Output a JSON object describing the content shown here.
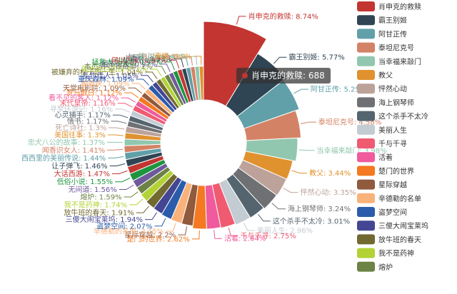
{
  "chart_data": {
    "type": "pie",
    "title": "",
    "legend_position": "right",
    "legend_items": [
      {
        "name": "肖申克的救赎",
        "color": "#c23531"
      },
      {
        "name": "霸王别姬",
        "color": "#2f4554"
      },
      {
        "name": "阿甘正传",
        "color": "#61a0a8"
      },
      {
        "name": "泰坦尼克号",
        "color": "#d48265"
      },
      {
        "name": "当幸福来敲门",
        "color": "#91c7ae"
      },
      {
        "name": "教父",
        "color": "#e0922f"
      },
      {
        "name": "怦然心动",
        "color": "#bda29a"
      },
      {
        "name": "海上钢琴师",
        "color": "#6e7074"
      },
      {
        "name": "这个杀手不太冷",
        "color": "#546570"
      },
      {
        "name": "美丽人生",
        "color": "#c4ccd3"
      },
      {
        "name": "千与千寻",
        "color": "#f05b72"
      },
      {
        "name": "活着",
        "color": "#ef5b9c"
      },
      {
        "name": "楚门的世界",
        "color": "#f47920"
      },
      {
        "name": "星际穿越",
        "color": "#905a3d"
      },
      {
        "name": "辛德勒的名单",
        "color": "#fab27b"
      },
      {
        "name": "盗梦空间",
        "color": "#2a5caa"
      },
      {
        "name": "三傻大闹宝莱坞",
        "color": "#444693"
      },
      {
        "name": "放牛班的春天",
        "color": "#726930"
      },
      {
        "name": "我不是药神",
        "color": "#b2d235"
      },
      {
        "name": "熔炉",
        "color": "#6d8346"
      }
    ],
    "slices": [
      {
        "name": "肖申克的救赎",
        "pct": 8.74,
        "color": "#c23531",
        "label": "肖申克的救赎: 8.74%"
      },
      {
        "name": "霸王别姬",
        "pct": 5.77,
        "color": "#2f4554",
        "label": "霸王别姬: 5.77%"
      },
      {
        "name": "阿甘正传",
        "pct": 5.25,
        "color": "#61a0a8",
        "label": "阿甘正传: 5.25%"
      },
      {
        "name": "泰坦尼克号",
        "pct": 4.58,
        "color": "#d48265",
        "label": "泰坦尼克号: 4.58%"
      },
      {
        "name": "当幸福来敲门",
        "pct": 3.98,
        "color": "#91c7ae",
        "label": "当幸福来敲门: 3.98%"
      },
      {
        "name": "教父",
        "pct": 3.44,
        "color": "#e0922f",
        "label": "教父: 3.44%"
      },
      {
        "name": "怦然心动",
        "pct": 3.35,
        "color": "#bda29a",
        "label": "怦然心动: 3.35%"
      },
      {
        "name": "海上钢琴师",
        "pct": 3.24,
        "color": "#6e7074",
        "label": "海上钢琴师: 3.24%"
      },
      {
        "name": "这个杀手不太冷",
        "pct": 3.01,
        "color": "#546570",
        "label": "这个杀手不太冷: 3.01%"
      },
      {
        "name": "美丽人生",
        "pct": 2.96,
        "color": "#c4ccd3",
        "label": "美丽人生: 2.96%"
      },
      {
        "name": "千与千寻",
        "pct": 2.75,
        "color": "#f05b72",
        "label": "千与千寻: 2.75%"
      },
      {
        "name": "活着",
        "pct": 2.64,
        "color": "#ef5b9c",
        "label": "活着: 2.64%"
      },
      {
        "name": "楚门的世界",
        "pct": 2.62,
        "color": "#f47920",
        "label": "楚门的世界: 2.62%"
      },
      {
        "name": "星际穿越",
        "pct": 2.2,
        "color": "#905a3d",
        "label": "星际穿越: 2.2%"
      },
      {
        "name": "辛德勒的名单",
        "pct": 2.15,
        "color": "#fab27b",
        "label": "辛德勒的名单: 2.15%"
      },
      {
        "name": "盗梦空间",
        "pct": 2.07,
        "color": "#2a5caa",
        "label": "盗梦空间: 2.07%"
      },
      {
        "name": "三傻大闹宝莱坞",
        "pct": 1.94,
        "color": "#444693",
        "label": "三傻大闹宝莱坞: 1.94%"
      },
      {
        "name": "放牛班的春天",
        "pct": 1.91,
        "color": "#726930",
        "label": "放牛班的春天: 1.91%"
      },
      {
        "name": "我不是药神",
        "pct": 1.74,
        "color": "#b2d235",
        "label": "我不是药神: 1.74%"
      },
      {
        "name": "熔炉",
        "pct": 1.59,
        "color": "#6d8346",
        "label": "熔炉: 1.59%"
      },
      {
        "name": "无间道",
        "pct": 1.56,
        "color": "#6f599c",
        "label": "无间道: 1.56%"
      },
      {
        "name": "低俗小说",
        "pct": 1.55,
        "color": "#1d953f",
        "label": "低俗小说: 1.55%"
      },
      {
        "name": "大话西游",
        "pct": 1.47,
        "color": "#c23531",
        "label": "大话西游: 1.47%"
      },
      {
        "name": "让子弹飞",
        "pct": 1.46,
        "color": "#2f4554",
        "label": "让子弹飞: 1.46%"
      },
      {
        "name": "西西里的美丽传说",
        "pct": 1.44,
        "color": "#61a0a8",
        "label": "西西里的美丽传说: 1.44%"
      },
      {
        "name": "闻香识女人",
        "pct": 1.41,
        "color": "#d48265",
        "label": "闻香识女人: 1.41%"
      },
      {
        "name": "忠犬八公的故事",
        "pct": 1.37,
        "color": "#91c7ae",
        "label": "忠犬八公的故事: 1.37%"
      },
      {
        "name": "美国往事",
        "pct": 1.3,
        "color": "#e0922f",
        "label": "美国往事: 1.3%"
      },
      {
        "name": "死亡诗社",
        "pct": 1.3,
        "color": "#bda29a",
        "label": "死亡诗社: 1.3%"
      },
      {
        "name": "情书",
        "pct": 1.17,
        "color": "#6e7074",
        "label": "情书: 1.17%"
      },
      {
        "name": "心灵捕手",
        "pct": 1.17,
        "color": "#546570",
        "label": "心灵捕手: 1.17%"
      },
      {
        "name": "寻梦环游记",
        "pct": 1.16,
        "color": "#c4ccd3",
        "label": "寻梦环游记: 1.16%"
      },
      {
        "name": "末代皇帝",
        "pct": 1.16,
        "color": "#f05b72",
        "label": "末代皇帝: 1.16%"
      },
      {
        "name": "看不见的客人",
        "pct": 1.12,
        "color": "#ef5b9c",
        "label": "看不见的客人: 1.12%"
      },
      {
        "name": "罗马假日",
        "pct": 1.12,
        "color": "#f47920",
        "label": "罗马假日: 1.12%"
      },
      {
        "name": "天堂电影院",
        "pct": 1.09,
        "color": "#905a3d",
        "label": "天堂电影院: 1.09%"
      },
      {
        "name": "蝙蝠侠",
        "pct": 1.09,
        "color": "#fab27b",
        "label": "蝙蝠侠: 1.09%"
      },
      {
        "name": "重庆森林",
        "pct": 1.09,
        "color": "#2a5caa",
        "label": "重庆森林: 1.09%"
      },
      {
        "name": "乱世佳人",
        "pct": 1.05,
        "color": "#444693",
        "label": "乱世佳人: 1.05%"
      },
      {
        "name": "被嫌弃的松子的一生",
        "pct": 1.04,
        "color": "#726930",
        "label": "被嫌弃的松子的一生: 1.04%"
      },
      {
        "name": "阳光灿烂的日子",
        "pct": 1.0,
        "color": "#b2d235",
        "label": "阳光灿烂的日子: 1%"
      },
      {
        "name": "本杰明·巴顿奇事",
        "pct": 1.0,
        "color": "#6d8346",
        "label": "本杰明·巴顿奇事: 1%"
      },
      {
        "name": "触不可及",
        "pct": 0.97,
        "color": "#6f599c",
        "label": "触不可及: 0.97%"
      },
      {
        "name": "拯救大兵瑞恩",
        "pct": 0.97,
        "color": "#1d953f",
        "label": "拯救大兵瑞恩: 0.97%"
      },
      {
        "name": "何以为家",
        "pct": 0.97,
        "color": "#c23531",
        "label": "何以为家: 0.97%"
      },
      {
        "name": "小森林",
        "pct": 0.93,
        "color": "#2f4554",
        "label": "小森林: 0.93%"
      },
      {
        "name": "断背山",
        "pct": 0.93,
        "color": "#61a0a8",
        "label": "断背山: 0.93%"
      },
      {
        "name": "十二怒汉",
        "pct": 0.93,
        "color": "#d48265",
        "label": "十二怒汉: 0.93%"
      },
      {
        "name": "釜山行",
        "pct": 0.92,
        "color": "#91c7ae",
        "label": "釜山行: 0.92%"
      },
      {
        "name": "素媛",
        "pct": 0.9,
        "color": "#e0922f",
        "label": "素媛: 0.9%"
      }
    ],
    "tooltip": {
      "name": "肖申克的救赎",
      "value": 688
    }
  }
}
